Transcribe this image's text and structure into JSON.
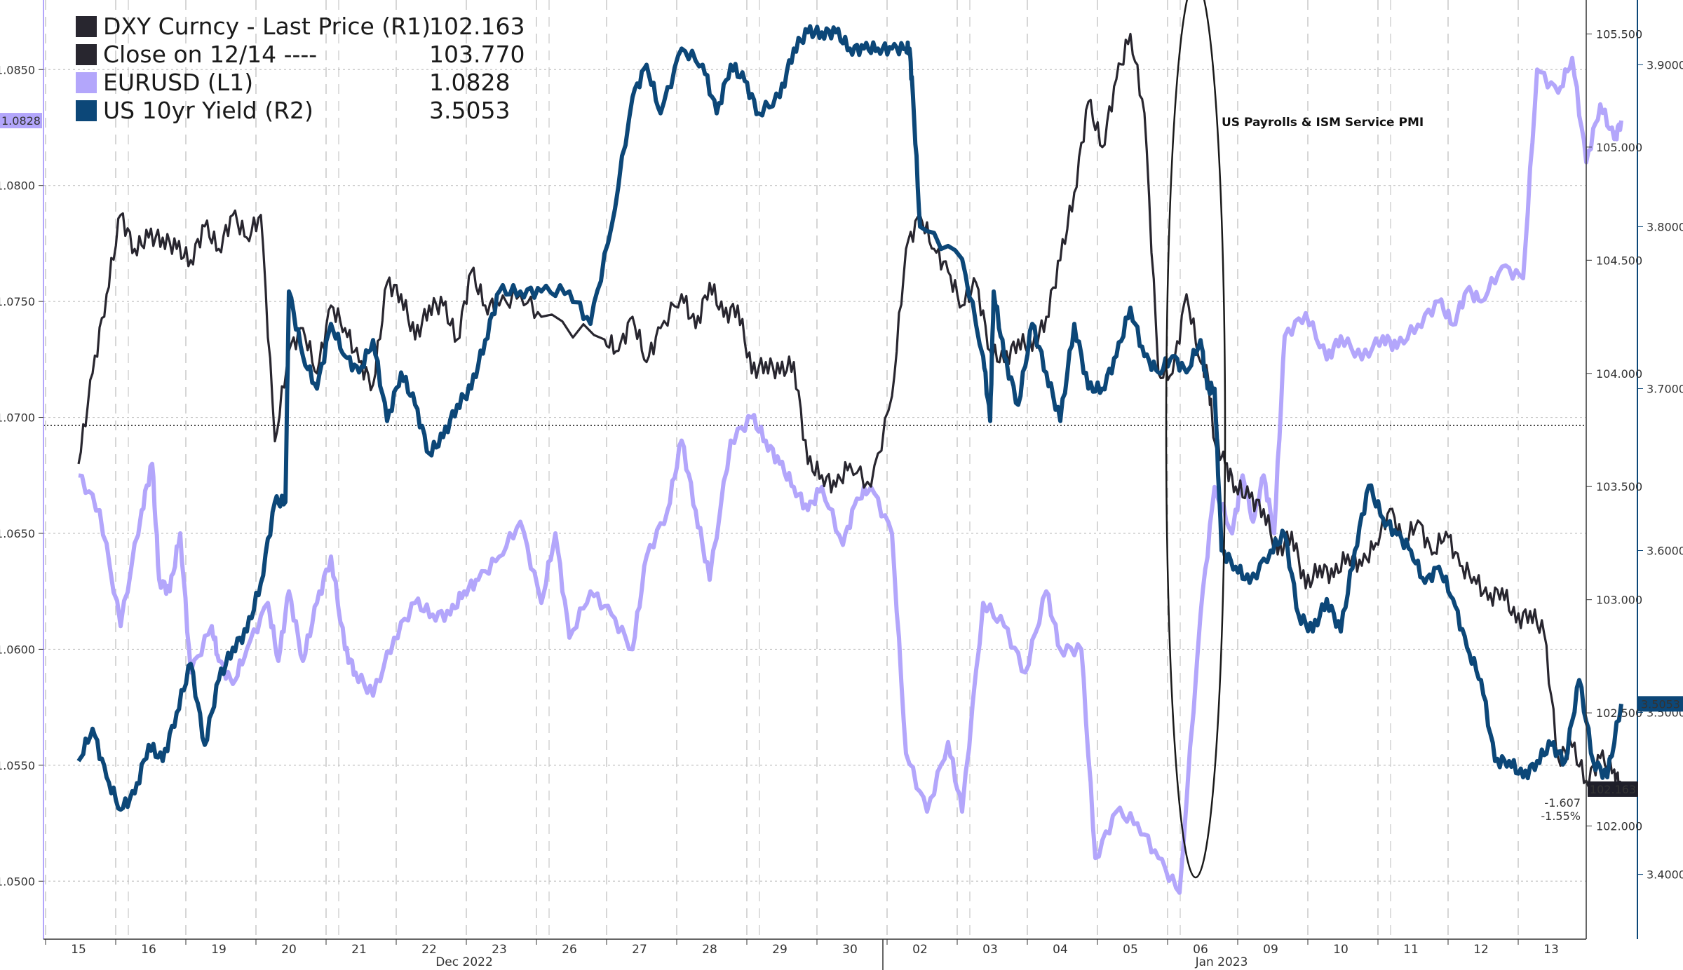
{
  "chart_data": {
    "type": "line",
    "legend": [
      {
        "label": "DXY Curncy - Last Price (R1)",
        "value": "102.163",
        "color": "#28262f"
      },
      {
        "label": "Close on 12/14 ----",
        "value": "103.770",
        "color": "#28262f"
      },
      {
        "label": "EURUSD (L1)",
        "value": "1.0828",
        "color": "#b3a6fb"
      },
      {
        "label": "US 10yr Yield (R2)",
        "value": "3.5053",
        "color": "#0c4778"
      }
    ],
    "x_ticks": [
      "15",
      "16",
      "19",
      "20",
      "21",
      "22",
      "23",
      "26",
      "27",
      "28",
      "29",
      "30",
      "02",
      "03",
      "04",
      "05",
      "06",
      "09",
      "10",
      "11",
      "12",
      "13"
    ],
    "x_period_labels": [
      "Dec 2022",
      "Jan 2023"
    ],
    "y_left": {
      "range": [
        1.0475,
        1.088
      ],
      "ticks": [
        "1.0500",
        "1.0550",
        "1.0600",
        "1.0650",
        "1.0700",
        "1.0750",
        "1.0800",
        "1.0850"
      ],
      "current": "1.0828"
    },
    "y_right1": {
      "range": [
        101.5,
        105.65
      ],
      "ticks": [
        "102.000",
        "102.500",
        "103.000",
        "103.500",
        "104.000",
        "104.500",
        "105.000",
        "105.500"
      ],
      "current": "102.163",
      "reference": 103.77,
      "change": [
        "-1.607",
        "-1.55%"
      ]
    },
    "y_right2": {
      "range": [
        3.36,
        3.94
      ],
      "ticks": [
        "3.4000",
        "3.5000",
        "3.6000",
        "3.7000",
        "3.8000",
        "3.9000"
      ],
      "current": "3.5053"
    },
    "annotation": "US Payrolls & ISM Service PMI",
    "series": [
      {
        "name": "EURUSD (L1)",
        "axis": "left",
        "color": "#b3a6fb",
        "x": [
          0,
          0.3,
          0.6,
          0.9,
          1.05,
          1.15,
          1.3,
          1.45,
          1.6,
          1.9,
          2.0,
          2.2,
          2.4,
          2.7,
          2.85,
          3.0,
          3.2,
          3.4,
          3.6,
          3.8,
          3.95,
          4.2,
          4.5,
          4.8,
          5.05,
          5.3,
          5.5,
          5.7,
          6.0,
          6.3,
          6.6,
          6.8,
          7.0,
          7.3,
          7.6,
          7.9,
          8.1,
          8.4,
          8.6,
          8.8,
          9.0,
          9.3,
          9.6,
          9.8,
          10.0,
          10.2,
          10.4,
          10.6,
          10.9,
          11.1,
          11.3,
          11.6,
          11.8,
          12.1,
          12.4,
          12.6,
          12.9,
          13.2,
          13.5,
          13.8,
          14.0,
          14.3,
          14.5,
          14.8,
          15.1,
          15.4,
          15.7,
          16.0,
          16.2,
          16.45,
          16.6,
          16.75,
          16.9,
          17.05,
          17.2,
          17.5,
          17.8,
          18.0,
          18.3,
          18.6,
          18.8,
          19.1,
          19.4,
          19.6,
          19.8,
          20.0,
          20.3,
          20.6,
          20.8,
          21.1,
          21.3,
          21.5,
          21.7,
          21.9,
          22.0
        ],
        "y": [
          1.0675,
          1.066,
          1.061,
          1.066,
          1.068,
          1.063,
          1.0625,
          1.065,
          1.059,
          1.061,
          1.0595,
          1.0585,
          1.06,
          1.062,
          1.0595,
          1.0625,
          1.0595,
          1.062,
          1.064,
          1.06,
          1.059,
          1.058,
          1.0605,
          1.062,
          1.0615,
          1.0615,
          1.0625,
          1.063,
          1.064,
          1.0655,
          1.062,
          1.065,
          1.0605,
          1.0625,
          1.0615,
          1.06,
          1.064,
          1.066,
          1.069,
          1.066,
          1.063,
          1.069,
          1.07,
          1.069,
          1.068,
          1.067,
          1.066,
          1.067,
          1.0645,
          1.0665,
          1.067,
          1.065,
          1.0555,
          1.053,
          1.056,
          1.053,
          1.062,
          1.061,
          1.059,
          1.0625,
          1.06,
          1.06,
          1.051,
          1.053,
          1.0525,
          1.051,
          1.0495,
          1.0615,
          1.067,
          1.065,
          1.0675,
          1.0655,
          1.0675,
          1.065,
          1.0735,
          1.0745,
          1.0725,
          1.0735,
          1.0725,
          1.0735,
          1.073,
          1.074,
          1.075,
          1.074,
          1.0755,
          1.075,
          1.0765,
          1.076,
          1.085,
          1.084,
          1.0855,
          1.081,
          1.0835,
          1.082,
          1.0828
        ]
      },
      {
        "name": "DXY Curncy - Last Price (R1)",
        "axis": "right1",
        "color": "#28262f",
        "x": [
          0,
          0.2,
          0.4,
          0.6,
          0.8,
          1.0,
          1.2,
          1.4,
          1.6,
          1.8,
          2.0,
          2.2,
          2.4,
          2.6,
          2.8,
          3.0,
          3.2,
          3.4,
          3.6,
          3.8,
          4.0,
          4.2,
          4.4,
          4.6,
          4.8,
          5.0,
          5.2,
          5.4,
          5.6,
          5.8,
          6.0,
          6.3,
          6.6,
          7.5,
          7.7,
          7.9,
          8.1,
          8.3,
          8.6,
          8.8,
          9.0,
          9.2,
          9.4,
          9.6,
          9.8,
          10.0,
          10.2,
          10.4,
          10.6,
          10.8,
          11.0,
          11.3,
          11.6,
          11.8,
          12.0,
          12.2,
          12.4,
          12.6,
          12.8,
          13.0,
          13.2,
          13.4,
          13.6,
          13.8,
          14.0,
          14.2,
          14.4,
          14.6,
          14.8,
          15.0,
          15.2,
          15.4,
          15.6,
          15.8,
          16.0,
          16.1,
          16.2,
          16.35,
          16.5,
          16.7,
          16.9,
          17.1,
          17.3,
          17.5,
          17.7,
          17.9,
          18.1,
          18.3,
          18.5,
          18.7,
          18.9,
          19.1,
          19.3,
          19.5,
          19.7,
          19.9,
          20.1,
          20.3,
          20.5,
          20.7,
          20.9,
          21.1,
          21.3,
          21.5,
          21.7,
          21.9,
          22.0
        ],
        "y": [
          103.6,
          104.0,
          104.35,
          104.7,
          104.55,
          104.6,
          104.6,
          104.55,
          104.5,
          104.65,
          104.55,
          104.7,
          104.6,
          104.7,
          103.7,
          104.1,
          104.2,
          104.0,
          104.3,
          104.2,
          104.05,
          103.95,
          104.4,
          104.35,
          104.15,
          104.3,
          104.3,
          104.15,
          104.45,
          104.3,
          104.3,
          104.35,
          104.25,
          104.15,
          104.1,
          104.25,
          104.05,
          104.2,
          104.35,
          104.2,
          104.4,
          104.25,
          104.3,
          104.0,
          104.05,
          104.0,
          104.05,
          103.6,
          103.55,
          103.5,
          103.6,
          103.5,
          103.9,
          104.55,
          104.7,
          104.55,
          104.45,
          104.3,
          104.4,
          104.1,
          104.05,
          104.15,
          104.1,
          104.25,
          104.5,
          104.8,
          105.2,
          105.0,
          105.3,
          105.5,
          105.15,
          104.0,
          104.0,
          104.35,
          104.05,
          104.0,
          103.7,
          103.6,
          103.5,
          103.45,
          103.4,
          103.2,
          103.3,
          103.05,
          103.15,
          103.1,
          103.2,
          103.15,
          103.25,
          103.4,
          103.25,
          103.35,
          103.2,
          103.3,
          103.15,
          103.1,
          103.0,
          103.05,
          102.9,
          102.95,
          102.85,
          102.3,
          102.35,
          102.2,
          102.3,
          102.25,
          102.163
        ]
      },
      {
        "name": "US 10yr Yield (R2)",
        "axis": "right2",
        "color": "#0c4778",
        "x": [
          0,
          0.2,
          0.4,
          0.6,
          0.8,
          1.0,
          1.2,
          1.4,
          1.6,
          1.8,
          2.0,
          2.2,
          2.4,
          2.6,
          2.8,
          2.95,
          3.0,
          3.2,
          3.4,
          3.6,
          3.8,
          4.0,
          4.2,
          4.4,
          4.6,
          4.8,
          5.0,
          5.2,
          5.4,
          5.6,
          5.8,
          6.0,
          6.3,
          6.6,
          7.0,
          7.3,
          7.6,
          7.9,
          8.1,
          8.3,
          8.6,
          8.9,
          9.1,
          9.3,
          9.5,
          9.7,
          10.0,
          10.2,
          10.4,
          10.6,
          10.8,
          11.0,
          11.2,
          11.4,
          11.6,
          11.8,
          11.85,
          11.9,
          12.0,
          12.6,
          12.9,
          13.0,
          13.05,
          13.2,
          13.4,
          13.6,
          13.8,
          14.0,
          14.2,
          14.4,
          14.6,
          14.8,
          15.0,
          15.2,
          15.4,
          15.6,
          15.8,
          16.0,
          16.1,
          16.2,
          16.3,
          16.5,
          16.7,
          17.0,
          17.2,
          17.4,
          17.6,
          17.8,
          18.0,
          18.2,
          18.4,
          18.6,
          18.8,
          19.0,
          19.2,
          19.4,
          19.6,
          19.8,
          20.0,
          20.2,
          20.4,
          20.6,
          20.8,
          21.0,
          21.2,
          21.4,
          21.6,
          21.8,
          22.0
        ],
        "y": [
          3.47,
          3.49,
          3.46,
          3.44,
          3.45,
          3.48,
          3.47,
          3.5,
          3.53,
          3.48,
          3.52,
          3.54,
          3.55,
          3.58,
          3.63,
          3.63,
          3.76,
          3.72,
          3.7,
          3.74,
          3.72,
          3.71,
          3.73,
          3.68,
          3.71,
          3.69,
          3.66,
          3.67,
          3.69,
          3.7,
          3.73,
          3.76,
          3.76,
          3.76,
          3.76,
          3.74,
          3.8,
          3.88,
          3.9,
          3.87,
          3.91,
          3.9,
          3.87,
          3.9,
          3.89,
          3.87,
          3.88,
          3.91,
          3.92,
          3.92,
          3.92,
          3.91,
          3.91,
          3.91,
          3.91,
          3.91,
          3.91,
          3.88,
          3.8,
          3.78,
          3.72,
          3.68,
          3.76,
          3.72,
          3.69,
          3.74,
          3.71,
          3.68,
          3.74,
          3.7,
          3.7,
          3.72,
          3.75,
          3.72,
          3.71,
          3.72,
          3.71,
          3.73,
          3.7,
          3.7,
          3.6,
          3.59,
          3.58,
          3.6,
          3.61,
          3.56,
          3.55,
          3.57,
          3.55,
          3.6,
          3.64,
          3.62,
          3.61,
          3.6,
          3.58,
          3.59,
          3.57,
          3.54,
          3.52,
          3.47,
          3.47,
          3.46,
          3.47,
          3.48,
          3.47,
          3.52,
          3.47,
          3.46,
          3.5053
        ]
      }
    ]
  }
}
